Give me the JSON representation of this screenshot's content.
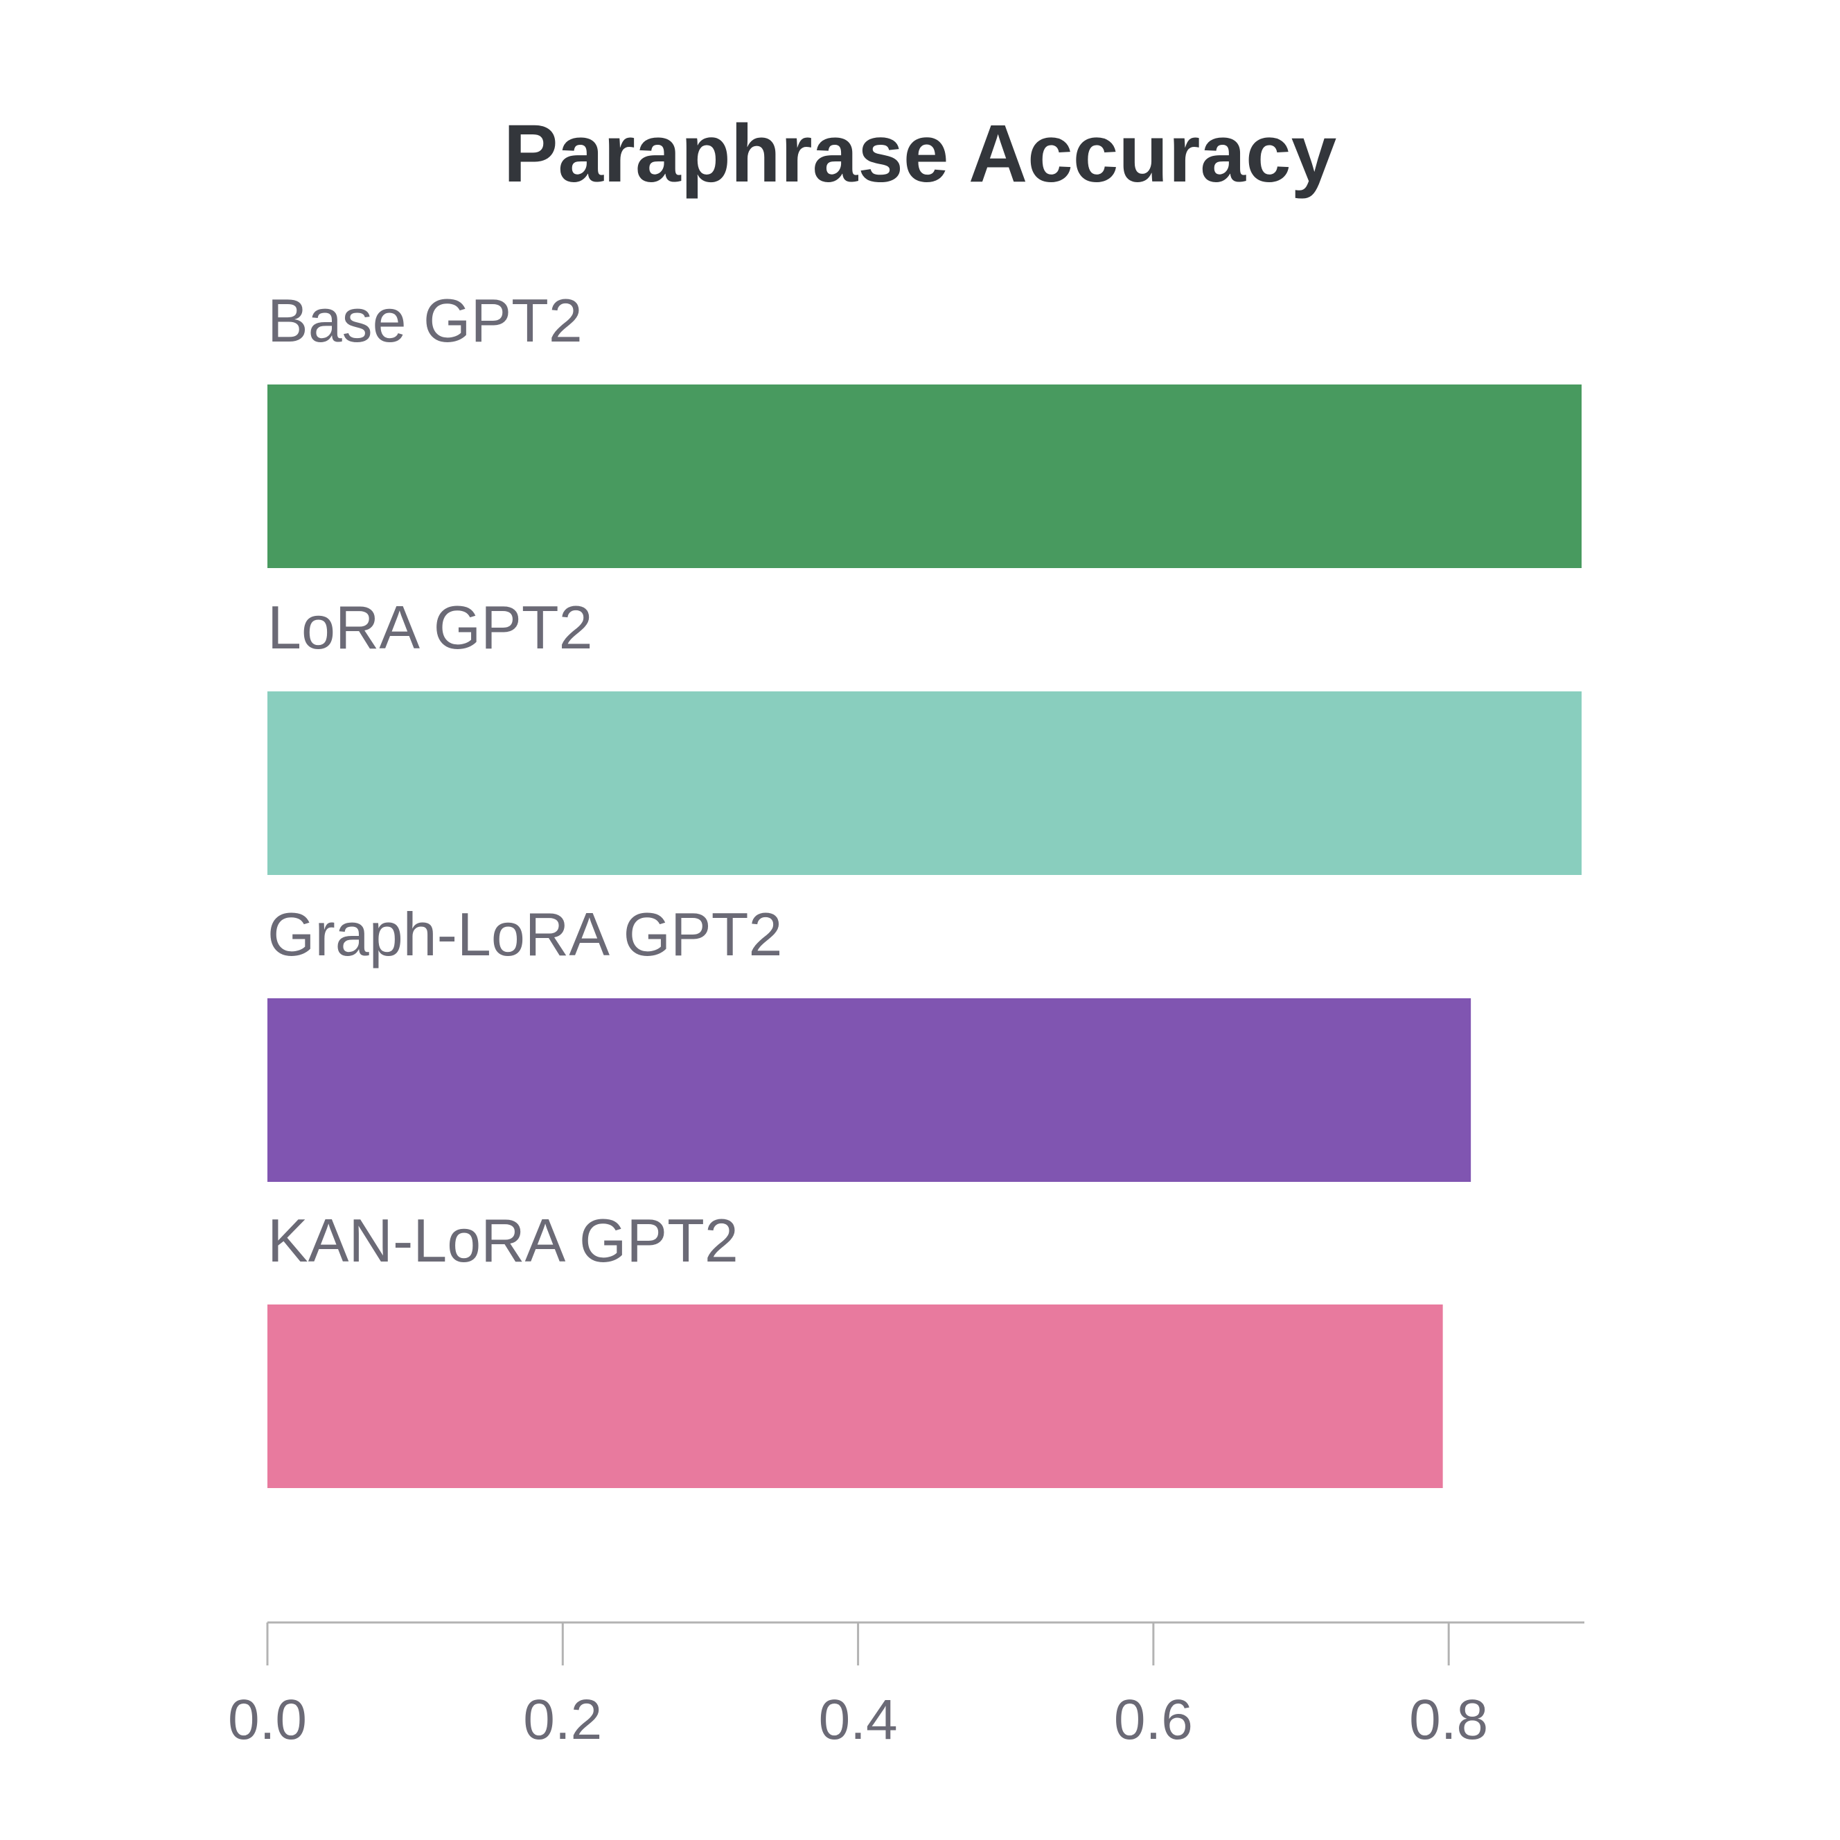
{
  "chart_data": {
    "type": "bar",
    "orientation": "horizontal",
    "title": "Paraphrase Accuracy",
    "xlabel": "",
    "ylabel": "",
    "categories": [
      "Base GPT2",
      "LoRA GPT2",
      "Graph-LoRA GPT2",
      "KAN-LoRA GPT2"
    ],
    "values": [
      0.89,
      0.89,
      0.815,
      0.796
    ],
    "colors": [
      "#489a5f",
      "#89cebe",
      "#8055b1",
      "#e87a9e"
    ],
    "xlim": [
      0,
      0.89
    ],
    "x_ticks": [
      0.0,
      0.2,
      0.4,
      0.6,
      0.8
    ],
    "x_tick_labels": [
      "0.0",
      "0.2",
      "0.4",
      "0.6",
      "0.8"
    ],
    "grid": false,
    "legend": "none"
  }
}
